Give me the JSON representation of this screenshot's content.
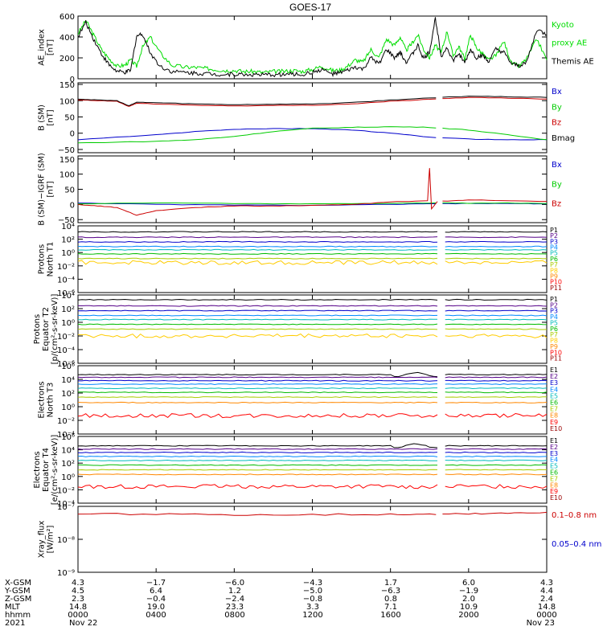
{
  "title": "GOES-17",
  "chart_data": [
    {
      "type": "line",
      "ylabel": "AE_index\n[nT]",
      "yscale": "linear",
      "ylim": [
        0,
        600
      ],
      "yticks": [
        "600",
        "400",
        "200",
        "0"
      ],
      "yticks_values": [
        600,
        400,
        200,
        0
      ],
      "legend": [
        {
          "text": "Kyoto",
          "color": "#00dd00"
        },
        {
          "text": "proxy AE",
          "color": "#00dd00"
        },
        {
          "text": "Themis AE",
          "color": "#000000"
        }
      ],
      "series": [
        {
          "name": "Kyoto proxy AE",
          "color": "#00dd00",
          "x": [
            0,
            0.4,
            0.8,
            1.2,
            1.6,
            2,
            2.4,
            2.7,
            3,
            3.3,
            3.7,
            4.2,
            4.8,
            5.5,
            6,
            6.5,
            7,
            7.5,
            8,
            8.5,
            9,
            9.5,
            10,
            10.5,
            11,
            11.5,
            12,
            12.5,
            13,
            13.4,
            13.8,
            14.2,
            14.6,
            15,
            15.4,
            15.8,
            16.2,
            16.5,
            16.8,
            17.1,
            17.4,
            17.7,
            18,
            18.3,
            18.6,
            18.9,
            19.2,
            19.5,
            19.8,
            20.1,
            20.4,
            20.7,
            21,
            21.4,
            21.8,
            22.2,
            22.6,
            23,
            23.5,
            24
          ],
          "y": [
            430,
            560,
            420,
            280,
            190,
            120,
            130,
            180,
            120,
            300,
            400,
            250,
            130,
            110,
            110,
            100,
            90,
            80,
            80,
            70,
            70,
            60,
            70,
            70,
            80,
            70,
            90,
            120,
            80,
            80,
            120,
            180,
            160,
            280,
            200,
            380,
            320,
            400,
            270,
            340,
            420,
            280,
            200,
            320,
            250,
            460,
            220,
            310,
            190,
            420,
            300,
            240,
            180,
            220,
            360,
            150,
            120,
            200,
            380,
            180
          ]
        },
        {
          "name": "Themis AE",
          "color": "#000000",
          "x": [
            0,
            0.4,
            0.8,
            1.2,
            1.6,
            2,
            2.4,
            2.7,
            3,
            3.3,
            3.7,
            4.2,
            4.8,
            5.5,
            6,
            6.5,
            7,
            7.5,
            8,
            8.5,
            9,
            9.5,
            10,
            10.5,
            11,
            11.5,
            12,
            12.5,
            13,
            13.4,
            13.8,
            14.2,
            14.6,
            15,
            15.4,
            15.8,
            16.2,
            16.5,
            16.8,
            17.1,
            17.4,
            17.7,
            18,
            18.3,
            18.6,
            18.9,
            19.2,
            19.5,
            19.8,
            20.1,
            20.4,
            20.7,
            21,
            21.4,
            21.8,
            22.2,
            22.6,
            23,
            23.5,
            24
          ],
          "y": [
            400,
            540,
            380,
            240,
            130,
            70,
            60,
            80,
            410,
            430,
            250,
            120,
            70,
            60,
            55,
            50,
            45,
            40,
            45,
            40,
            40,
            35,
            40,
            40,
            45,
            40,
            60,
            90,
            45,
            55,
            80,
            110,
            90,
            200,
            140,
            280,
            200,
            250,
            160,
            230,
            320,
            190,
            260,
            580,
            220,
            300,
            170,
            240,
            150,
            280,
            200,
            230,
            160,
            280,
            250,
            140,
            120,
            170,
            470,
            420
          ]
        }
      ]
    },
    {
      "type": "line",
      "ylabel": "B (SM)\n[nT]",
      "yscale": "linear",
      "ylim": [
        -60,
        155
      ],
      "yticks": [
        "150",
        "100",
        "50",
        "0",
        "−50"
      ],
      "yticks_values": [
        150,
        100,
        50,
        0,
        -50
      ],
      "legend": [
        {
          "text": "Bx",
          "color": "#0000cc"
        },
        {
          "text": "By",
          "color": "#00cc00"
        },
        {
          "text": "Bz",
          "color": "#cc0000"
        },
        {
          "text": "Bmag",
          "color": "#000000"
        }
      ],
      "series": [
        {
          "name": "Bx",
          "color": "#0000cc",
          "x": [
            0,
            4,
            6,
            8,
            10,
            12,
            14,
            16,
            18,
            20,
            22,
            24
          ],
          "y": [
            -20,
            -5,
            5,
            12,
            14,
            14,
            10,
            0,
            -12,
            -18,
            -20,
            -20
          ]
        },
        {
          "name": "By",
          "color": "#00cc00",
          "x": [
            0,
            4,
            6,
            8,
            10,
            12,
            14,
            16,
            18,
            20,
            22,
            24
          ],
          "y": [
            -30,
            -25,
            -20,
            -10,
            5,
            15,
            18,
            20,
            18,
            10,
            -5,
            -20
          ]
        },
        {
          "name": "Bz",
          "color": "#cc0000",
          "x": [
            0,
            1,
            2,
            2.6,
            3,
            4,
            6,
            8,
            10,
            12,
            14,
            16,
            18,
            20,
            22,
            24
          ],
          "y": [
            102,
            100,
            98,
            82,
            92,
            90,
            86,
            84,
            85,
            86,
            90,
            98,
            104,
            110,
            108,
            105
          ]
        },
        {
          "name": "Bmag",
          "color": "#000000",
          "x": [
            0,
            1,
            2,
            2.6,
            3,
            4,
            6,
            8,
            10,
            12,
            14,
            16,
            18,
            20,
            22,
            24
          ],
          "y": [
            105,
            102,
            100,
            84,
            95,
            94,
            90,
            88,
            89,
            90,
            94,
            102,
            108,
            114,
            112,
            110
          ]
        }
      ]
    },
    {
      "type": "line",
      "ylabel": "B (SM)−IGRF (SM)\n[nT]",
      "yscale": "linear",
      "ylim": [
        -60,
        160
      ],
      "yticks": [
        "150",
        "100",
        "50",
        "0",
        "−50"
      ],
      "yticks_values": [
        150,
        100,
        50,
        0,
        -50
      ],
      "legend": [
        {
          "text": "Bx",
          "color": "#0000cc"
        },
        {
          "text": "By",
          "color": "#00cc00"
        },
        {
          "text": "Bz",
          "color": "#cc0000"
        }
      ],
      "series": [
        {
          "name": "Bx",
          "color": "#0000cc",
          "x": [
            0,
            4,
            8,
            12,
            16,
            18,
            20,
            22,
            24
          ],
          "y": [
            5,
            0,
            -2,
            -3,
            0,
            2,
            3,
            3,
            2
          ]
        },
        {
          "name": "By",
          "color": "#00cc00",
          "x": [
            0,
            4,
            8,
            12,
            16,
            18,
            20,
            22,
            24
          ],
          "y": [
            2,
            5,
            3,
            2,
            4,
            5,
            4,
            5,
            3
          ]
        },
        {
          "name": "Bz",
          "color": "#cc0000",
          "x": [
            0,
            1,
            2,
            3,
            4,
            6,
            8,
            10,
            12,
            14,
            16,
            17.9,
            18,
            18.1,
            18.4,
            20,
            22,
            24
          ],
          "y": [
            0,
            -5,
            -10,
            -35,
            -20,
            -10,
            -5,
            -5,
            -3,
            0,
            8,
            12,
            120,
            -15,
            10,
            15,
            12,
            10
          ]
        }
      ]
    },
    {
      "type": "line",
      "ylabel": "Protons\nNorth T1",
      "yscale": "log",
      "ylim": [
        -6,
        4
      ],
      "yticks": [
        "10⁴",
        "10²",
        "10⁰",
        "10⁻²",
        "10⁻⁴",
        "10⁻⁶"
      ],
      "yticks_values": [
        4,
        2,
        0,
        -2,
        -4,
        -6
      ],
      "legend": [
        {
          "text": "P1",
          "color": "#000000"
        },
        {
          "text": "P2",
          "color": "#550088"
        },
        {
          "text": "P3",
          "color": "#0000cc"
        },
        {
          "text": "P4",
          "color": "#0088ff"
        },
        {
          "text": "P5",
          "color": "#00bbbb"
        },
        {
          "text": "P6",
          "color": "#00bb00"
        },
        {
          "text": "P7",
          "color": "#aacc00"
        },
        {
          "text": "P8",
          "color": "#ffcc00"
        },
        {
          "text": "P9",
          "color": "#ff8800"
        },
        {
          "text": "P10",
          "color": "#ff0000"
        },
        {
          "text": "P11",
          "color": "#990000"
        }
      ],
      "levels": [
        3.1,
        2.3,
        1.6,
        0.9,
        0.4,
        -0.2,
        -0.9,
        -1.5
      ]
    },
    {
      "type": "line",
      "ylabel": "Protons\nEquator T2\n[p/(cm²-s-sr-keV)]",
      "yscale": "log",
      "ylim": [
        -6,
        4
      ],
      "yticks": [
        "10⁴",
        "10²",
        "10⁰",
        "10⁻²",
        "10⁻⁴",
        "10⁻⁶"
      ],
      "yticks_values": [
        4,
        2,
        0,
        -2,
        -4,
        -6
      ],
      "legend": [
        {
          "text": "P1",
          "color": "#000000"
        },
        {
          "text": "P2",
          "color": "#550088"
        },
        {
          "text": "P3",
          "color": "#0000cc"
        },
        {
          "text": "P4",
          "color": "#0088ff"
        },
        {
          "text": "P5",
          "color": "#00bbbb"
        },
        {
          "text": "P6",
          "color": "#00bb00"
        },
        {
          "text": "P7",
          "color": "#aacc00"
        },
        {
          "text": "P8",
          "color": "#ffcc00"
        },
        {
          "text": "P9",
          "color": "#ff8800"
        },
        {
          "text": "P10",
          "color": "#ff0000"
        },
        {
          "text": "P11",
          "color": "#990000"
        }
      ],
      "levels": [
        3.3,
        2.4,
        1.7,
        1.0,
        0.4,
        -0.3,
        -1.0,
        -2.0
      ]
    },
    {
      "type": "line",
      "ylabel": "Electrons\nNorth T3",
      "yscale": "log",
      "ylim": [
        -4,
        6
      ],
      "yticks": [
        "10⁶",
        "10⁴",
        "10²",
        "10⁰",
        "10⁻²",
        "10⁻⁴"
      ],
      "yticks_values": [
        6,
        4,
        2,
        0,
        -2,
        -4
      ],
      "legend": [
        {
          "text": "E1",
          "color": "#000000"
        },
        {
          "text": "E2",
          "color": "#550088"
        },
        {
          "text": "E3",
          "color": "#0000cc"
        },
        {
          "text": "E4",
          "color": "#0088ff"
        },
        {
          "text": "E5",
          "color": "#00bbbb"
        },
        {
          "text": "E6",
          "color": "#00bb00"
        },
        {
          "text": "E7",
          "color": "#aacc00"
        },
        {
          "text": "E8",
          "color": "#ff8800"
        },
        {
          "text": "E9",
          "color": "#ff0000"
        },
        {
          "text": "E10",
          "color": "#990000"
        }
      ],
      "levels": [
        4.7,
        4.3,
        3.8,
        3.3,
        2.7,
        2.1,
        1.4,
        0.6,
        -1.3
      ]
    },
    {
      "type": "line",
      "ylabel": "Electrons\nEquator T4\n[e/(cm²-s-sr-keV)]",
      "yscale": "log",
      "ylim": [
        -4,
        6
      ],
      "yticks": [
        "10⁶",
        "10⁴",
        "10²",
        "10⁰",
        "10⁻²",
        "10⁻⁴"
      ],
      "yticks_values": [
        6,
        4,
        2,
        0,
        -2,
        -4
      ],
      "legend": [
        {
          "text": "E1",
          "color": "#000000"
        },
        {
          "text": "E2",
          "color": "#550088"
        },
        {
          "text": "E3",
          "color": "#0000cc"
        },
        {
          "text": "E4",
          "color": "#0088ff"
        },
        {
          "text": "E5",
          "color": "#00bbbb"
        },
        {
          "text": "E6",
          "color": "#00bb00"
        },
        {
          "text": "E7",
          "color": "#aacc00"
        },
        {
          "text": "E8",
          "color": "#ff8800"
        },
        {
          "text": "E9",
          "color": "#ff0000"
        },
        {
          "text": "E10",
          "color": "#990000"
        }
      ],
      "levels": [
        4.6,
        4.1,
        3.6,
        3.0,
        2.4,
        1.7,
        1.0,
        0.3,
        -1.5
      ]
    },
    {
      "type": "line",
      "ylabel": "Xray_flux\n[W/m²]",
      "yscale": "log",
      "ylim": [
        -9,
        -7
      ],
      "yticks": [
        "10⁻⁷",
        "10⁻⁸",
        "10⁻⁹"
      ],
      "yticks_values": [
        -7,
        -8,
        -9
      ],
      "legend": [
        {
          "text": "0.1–0.8 nm",
          "color": "#cc0000"
        },
        {
          "text": "0.05–0.4 nm",
          "color": "#0000cc"
        }
      ],
      "series": [
        {
          "name": "0.1–0.8 nm",
          "color": "#cc0000",
          "x": [
            0,
            4,
            8,
            12,
            16,
            18,
            20,
            22,
            24
          ],
          "y": [
            -7.22,
            -7.24,
            -7.25,
            -7.25,
            -7.24,
            -7.23,
            -7.22,
            -7.2,
            -7.18
          ]
        }
      ]
    }
  ],
  "time_axis": {
    "xlim_hours": [
      0,
      24
    ],
    "row_labels": [
      "X-GSM",
      "Y-GSM",
      "Z-GSM",
      "MLT",
      "hhmm",
      "2021"
    ],
    "columns": [
      {
        "values": [
          "4.3",
          "4.5",
          "2.3",
          "14.8",
          "0000",
          "Nov 22"
        ]
      },
      {
        "values": [
          "−1.7",
          "6.4",
          "−0.4",
          "19.0",
          "0400",
          ""
        ]
      },
      {
        "values": [
          "−6.0",
          "1.2",
          "−2.4",
          "23.3",
          "0800",
          ""
        ]
      },
      {
        "values": [
          "−4.3",
          "−5.0",
          "−0.8",
          "3.3",
          "1200",
          ""
        ]
      },
      {
        "values": [
          "1.7",
          "−6.3",
          "0.8",
          "7.1",
          "1600",
          ""
        ]
      },
      {
        "values": [
          "6.0",
          "−1.9",
          "2.0",
          "10.9",
          "2000",
          ""
        ]
      },
      {
        "values": [
          "4.3",
          "4.4",
          "2.4",
          "14.8",
          "0000",
          "Nov 23"
        ]
      }
    ]
  }
}
